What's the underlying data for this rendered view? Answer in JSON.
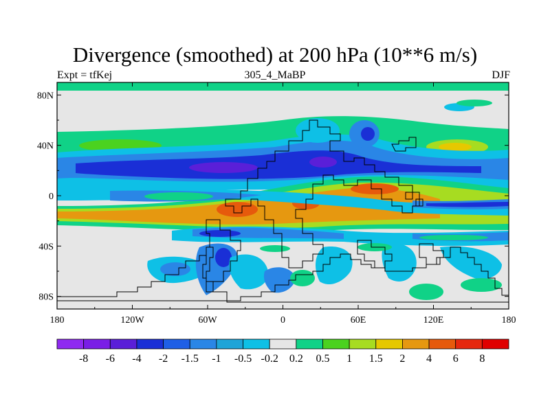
{
  "chart_data": {
    "type": "contour-map",
    "title": "Divergence (smoothed) at 200 hPa (10**6 m/s)",
    "left_label": "Expt = tfKej",
    "center_label": "305_4_MaBP",
    "right_label": "DJF",
    "x_ticks": [
      "180",
      "120W",
      "60W",
      "0",
      "60E",
      "120E",
      "180"
    ],
    "y_ticks": [
      "80N",
      "40N",
      "0",
      "40S",
      "80S"
    ],
    "xlim": [
      -180,
      180
    ],
    "ylim": [
      -90,
      90
    ],
    "colorbar": {
      "labels": [
        "-8",
        "-6",
        "-4",
        "-2",
        "-1.5",
        "-1",
        "-0.5",
        "-0.2",
        "0.2",
        "0.5",
        "1",
        "1.5",
        "2",
        "4",
        "6",
        "8"
      ],
      "colors": [
        "#8f2af0",
        "#7a1ee6",
        "#5a1fd8",
        "#1a2fd6",
        "#1f5fe6",
        "#2a86e6",
        "#1ea4d8",
        "#0ec0e6",
        "#e6e6e6",
        "#10d287",
        "#4bd21f",
        "#a7dc21",
        "#e6c800",
        "#e69810",
        "#e65a0c",
        "#e6280e",
        "#e00000"
      ]
    },
    "fill_colors": {
      "neutral": "#e6e6e6",
      "neg_weak": "#0ec0e6",
      "neg_mid": "#2a86e6",
      "neg_strong": "#1a2fd6",
      "neg_extreme": "#5a1fd8",
      "pos_weak": "#10d287",
      "pos_mid": "#a7dc21",
      "pos_strong": "#e69810",
      "pos_extreme": "#e65a0c"
    }
  }
}
